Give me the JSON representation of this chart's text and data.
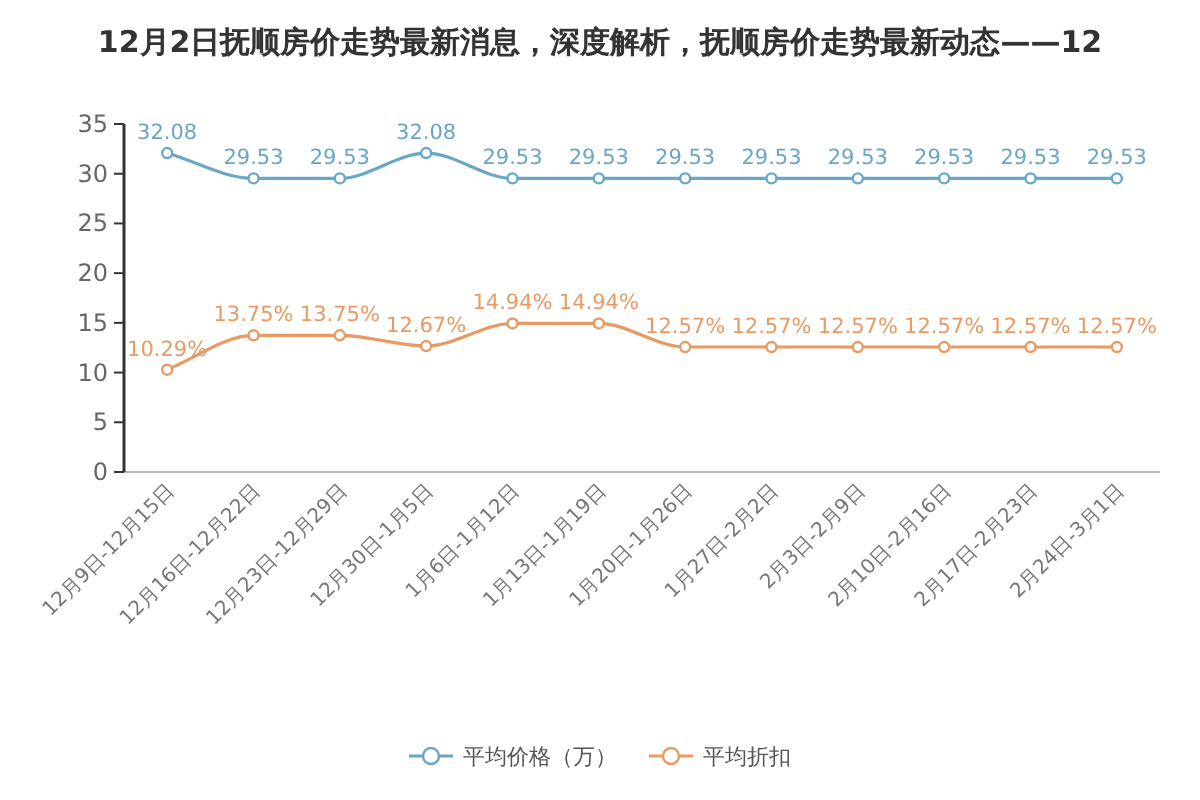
{
  "chart_data": {
    "type": "line",
    "title": "12月2日抚顺房价走势最新消息，深度解析，抚顺房价走势最新动态——12",
    "categories": [
      "12月9日-12月15日",
      "12月16日-12月22日",
      "12月23日-12月29日",
      "12月30日-1月5日",
      "1月6日-1月12日",
      "1月13日-1月19日",
      "1月20日-1月26日",
      "1月27日-2月2日",
      "2月3日-2月9日",
      "2月10日-2月16日",
      "2月17日-2月23日",
      "2月24日-3月1日"
    ],
    "series": [
      {
        "name": "平均价格（万）",
        "color": "#6aa6c6",
        "values": [
          32.08,
          29.53,
          29.53,
          32.08,
          29.53,
          29.53,
          29.53,
          29.53,
          29.53,
          29.53,
          29.53,
          29.53
        ],
        "value_labels": [
          "32.08",
          "29.53",
          "29.53",
          "32.08",
          "29.53",
          "29.53",
          "29.53",
          "29.53",
          "29.53",
          "29.53",
          "29.53",
          "29.53"
        ]
      },
      {
        "name": "平均折扣",
        "color": "#e89a62",
        "values": [
          10.29,
          13.75,
          13.75,
          12.67,
          14.94,
          14.94,
          12.57,
          12.57,
          12.57,
          12.57,
          12.57,
          12.57
        ],
        "value_labels": [
          "10.29%",
          "13.75%",
          "13.75%",
          "12.67%",
          "14.94%",
          "14.94%",
          "12.57%",
          "12.57%",
          "12.57%",
          "12.57%",
          "12.57%",
          "12.57%"
        ]
      }
    ],
    "ylim": [
      0,
      35
    ],
    "yticks": [
      0,
      5,
      10,
      15,
      20,
      25,
      30,
      35
    ],
    "marker": "circle",
    "legend": "bottom",
    "grid": false
  }
}
